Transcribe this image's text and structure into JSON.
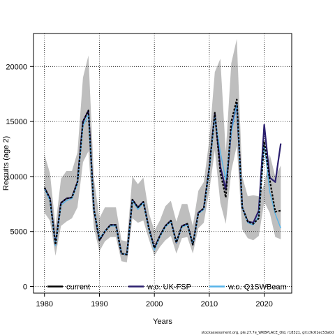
{
  "chart_data": {
    "type": "line",
    "xlabel": "Years",
    "ylabel": "Recruits (age 2)",
    "xlim": [
      1978,
      2025
    ],
    "ylim": [
      -600,
      23000
    ],
    "x_ticks": [
      1980,
      1990,
      2000,
      2010,
      2020
    ],
    "y_ticks": [
      0,
      5000,
      10000,
      15000,
      20000
    ],
    "grid": "dotted",
    "legend_position": "bottom",
    "footnote": "stockassessment.org, ple.27.7e_WKBPLACE_Old, r18321, git:c9c61ec53a0d",
    "years": [
      1980,
      1981,
      1982,
      1983,
      1984,
      1985,
      1986,
      1987,
      1988,
      1989,
      1990,
      1991,
      1992,
      1993,
      1994,
      1995,
      1996,
      1997,
      1998,
      1999,
      2000,
      2001,
      2002,
      2003,
      2004,
      2005,
      2006,
      2007,
      2008,
      2009,
      2010,
      2011,
      2012,
      2013,
      2014,
      2015,
      2016,
      2017,
      2018,
      2019,
      2020,
      2021,
      2022,
      2023
    ],
    "ci_band": {
      "upper": [
        12000,
        10300,
        5500,
        9800,
        10500,
        10500,
        12200,
        19000,
        21000,
        9800,
        6200,
        7200,
        7200,
        7200,
        4200,
        4100,
        10000,
        9300,
        9900,
        6700,
        5100,
        6000,
        7300,
        7800,
        5900,
        7500,
        7500,
        5500,
        8700,
        9500,
        13300,
        19500,
        20700,
        12200,
        20300,
        22500,
        10000,
        8200,
        8300,
        8200,
        9300,
        12000,
        10000,
        11000
      ],
      "lower": [
        6700,
        6000,
        2800,
        5500,
        5900,
        6200,
        7200,
        11300,
        12300,
        5300,
        3200,
        4100,
        4500,
        4500,
        2300,
        2200,
        6200,
        5800,
        6000,
        4300,
        2800,
        3600,
        4200,
        4600,
        3000,
        4400,
        4500,
        3000,
        5300,
        5800,
        8700,
        12400,
        7600,
        5700,
        10500,
        12800,
        5200,
        4400,
        4200,
        4600,
        7700,
        6700,
        4500,
        4300
      ]
    },
    "series": [
      {
        "name": "current",
        "color": "#000000",
        "values": [
          9000,
          8000,
          3800,
          7600,
          8000,
          8100,
          9500,
          15000,
          16000,
          7000,
          4200,
          5000,
          5600,
          5600,
          3000,
          2900,
          7900,
          7200,
          7700,
          5300,
          3500,
          4600,
          5500,
          6000,
          4000,
          5500,
          5700,
          3800,
          6700,
          7100,
          10800,
          15800,
          10400,
          8100,
          15000,
          17000,
          7200,
          5900,
          5700,
          6200,
          13200,
          9700,
          6800,
          6900
        ]
      },
      {
        "name": "w.o. UK-FSP",
        "color": "#2b1f6e",
        "values": [
          9000,
          8000,
          3800,
          7600,
          8000,
          8100,
          9500,
          15000,
          16000,
          7000,
          4200,
          5000,
          5600,
          5600,
          3000,
          2900,
          7900,
          7200,
          7700,
          5300,
          3500,
          4600,
          5500,
          6000,
          4000,
          5500,
          5700,
          3800,
          6700,
          7100,
          10800,
          15700,
          10900,
          8800,
          14200,
          16600,
          7200,
          5900,
          5800,
          6900,
          14700,
          9900,
          9500,
          13000
        ]
      },
      {
        "name": "w.o. Q1SWBeam",
        "color": "#56b4e9",
        "values": [
          8900,
          7800,
          3700,
          7400,
          7800,
          8000,
          9300,
          14600,
          15600,
          7000,
          4400,
          5000,
          5500,
          5500,
          3000,
          2900,
          7800,
          7000,
          7600,
          5200,
          3300,
          4500,
          5400,
          5900,
          4000,
          5400,
          5600,
          3800,
          6600,
          7000,
          10600,
          15400,
          12200,
          9700,
          14000,
          16600,
          7200,
          5800,
          5600,
          6400,
          13000,
          8600,
          6600,
          5300
        ]
      }
    ]
  }
}
